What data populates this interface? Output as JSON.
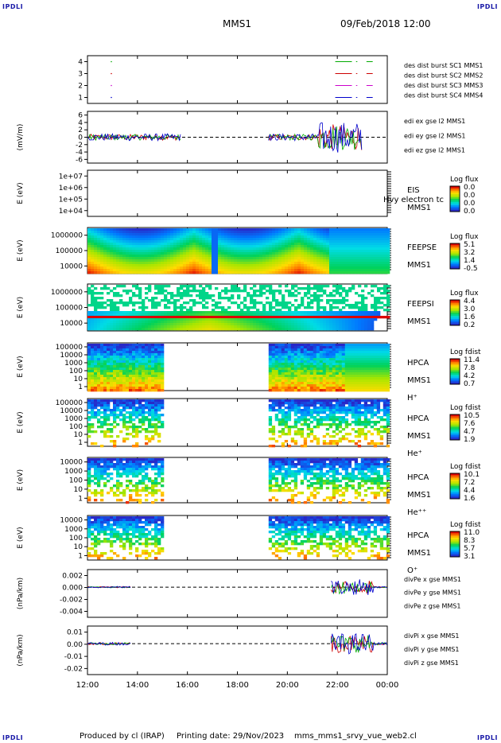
{
  "header": {
    "corner_label": "IPDLI",
    "spacecraft": "MMS1",
    "datetime": "09/Feb/2018 12:00"
  },
  "footer": {
    "produced": "Produced by cl (IRAP)",
    "printing": "Printing date: 29/Nov/2023",
    "file": "mms_mms1_srvy_vue_web2.cl"
  },
  "time_axis": {
    "start": "12:00",
    "end": "00:00",
    "ticks": [
      "12:00",
      "14:00",
      "16:00",
      "18:00",
      "20:00",
      "22:00",
      "00:00"
    ]
  },
  "chart_data": [
    {
      "type": "scatter",
      "title": "",
      "ylabel": "",
      "yticks": [
        "1",
        "2",
        "3",
        "4"
      ],
      "ylim": [
        0.5,
        4.5
      ],
      "legend": [
        "des dist burst SC1 MMS1",
        "des dist burst SC2 MMS2",
        "des dist burst SC3 MMS3",
        "des dist burst SC4 MMS4"
      ],
      "colors": [
        "#0000cc",
        "#cc00cc",
        "#cc0000",
        "#00aa00"
      ],
      "series": [
        {
          "name": "des dist burst SC1 MMS1",
          "level": 1,
          "intervals": [
            [
              "21:55",
              "22:35"
            ],
            [
              "22:45",
              "22:48"
            ],
            [
              "23:10",
              "23:25"
            ]
          ]
        },
        {
          "name": "des dist burst SC2 MMS2",
          "level": 2,
          "intervals": [
            [
              "21:55",
              "22:35"
            ],
            [
              "22:45",
              "22:48"
            ],
            [
              "23:10",
              "23:25"
            ]
          ]
        },
        {
          "name": "des dist burst SC3 MMS3",
          "level": 3,
          "intervals": [
            [
              "21:55",
              "22:35"
            ],
            [
              "22:45",
              "22:48"
            ],
            [
              "23:10",
              "23:25"
            ]
          ]
        },
        {
          "name": "des dist burst SC4 MMS4",
          "level": 4,
          "intervals": [
            [
              "21:55",
              "22:35"
            ],
            [
              "22:45",
              "22:48"
            ],
            [
              "23:10",
              "23:25"
            ]
          ]
        }
      ]
    },
    {
      "type": "line",
      "title": "",
      "ylabel": "(mV/m)",
      "yticks": [
        "-6",
        "-4",
        "-2",
        "0",
        "2",
        "4",
        "6"
      ],
      "ylim": [
        -7,
        7
      ],
      "legend": [
        "edi ex gse l2 MMS1",
        "edi ey gse l2 MMS1",
        "edi ez gse l2 MMS1"
      ],
      "colors": [
        "#cc0000",
        "#00aa00",
        "#0000cc"
      ],
      "segments": [
        [
          "12:00",
          "15:45"
        ],
        [
          "19:15",
          "23:00"
        ]
      ]
    },
    {
      "type": "heatmap",
      "title": "",
      "ylabel": "E (eV)",
      "yticks": [
        "1e+04",
        "1e+05",
        "1e+06",
        "1e+07"
      ],
      "side_labels": [
        "EIS",
        "MMS1"
      ],
      "overlay_label": "Hvy electron tc",
      "colorbar_label": "Log flux",
      "colorbar_ticks": [
        "0.0",
        "0.0",
        "0.0",
        "0.0"
      ],
      "coverage": []
    },
    {
      "type": "heatmap",
      "title": "",
      "ylabel": "E (eV)",
      "yticks": [
        "10000",
        "100000",
        "1000000"
      ],
      "side_labels": [
        "FEEPSE",
        "MMS1"
      ],
      "colorbar_label": "Log flux",
      "colorbar_ticks": [
        "5.1",
        "3.2",
        "1.4",
        "-0.5"
      ],
      "coverage": [
        [
          "12:00",
          "00:00"
        ]
      ]
    },
    {
      "type": "heatmap",
      "title": "",
      "ylabel": "E (eV)",
      "yticks": [
        "10000",
        "100000",
        "1000000"
      ],
      "side_labels": [
        "FEEPSI",
        "MMS1"
      ],
      "colorbar_label": "Log flux",
      "colorbar_ticks": [
        "4.4",
        "3.0",
        "1.6",
        "0.2"
      ],
      "coverage": [
        [
          "12:00",
          "00:00"
        ]
      ]
    },
    {
      "type": "heatmap",
      "title": "",
      "ylabel": "E (eV)",
      "yticks": [
        "1",
        "10",
        "100",
        "1000",
        "10000",
        "100000"
      ],
      "side_labels": [
        "HPCA",
        "MMS1",
        "H⁺"
      ],
      "colorbar_label": "Log fdist",
      "colorbar_ticks": [
        "11.4",
        "7.8",
        "4.2",
        "0.7"
      ],
      "coverage": [
        [
          "12:00",
          "15:00"
        ],
        [
          "19:15",
          "00:00"
        ]
      ]
    },
    {
      "type": "heatmap",
      "title": "",
      "ylabel": "E (eV)",
      "yticks": [
        "1",
        "10",
        "100",
        "1000",
        "10000",
        "100000"
      ],
      "side_labels": [
        "HPCA",
        "MMS1",
        "He⁺"
      ],
      "colorbar_label": "Log fdist",
      "colorbar_ticks": [
        "10.5",
        "7.6",
        "4.7",
        "1.9"
      ],
      "coverage": [
        [
          "12:00",
          "15:00"
        ],
        [
          "19:15",
          "00:00"
        ]
      ]
    },
    {
      "type": "heatmap",
      "title": "",
      "ylabel": "E (eV)",
      "yticks": [
        "1",
        "10",
        "100",
        "1000",
        "10000"
      ],
      "side_labels": [
        "HPCA",
        "MMS1",
        "He⁺⁺"
      ],
      "colorbar_label": "Log fdist",
      "colorbar_ticks": [
        "10.1",
        "7.2",
        "4.4",
        "1.6"
      ],
      "coverage": [
        [
          "12:00",
          "15:00"
        ],
        [
          "19:15",
          "00:00"
        ]
      ]
    },
    {
      "type": "heatmap",
      "title": "",
      "ylabel": "E (eV)",
      "yticks": [
        "1",
        "10",
        "100",
        "1000",
        "10000"
      ],
      "side_labels": [
        "HPCA",
        "MMS1",
        "O⁺"
      ],
      "colorbar_label": "Log fdist",
      "colorbar_ticks": [
        "11.0",
        "8.3",
        "5.7",
        "3.1"
      ],
      "coverage": [
        [
          "12:00",
          "15:00"
        ],
        [
          "19:15",
          "00:00"
        ]
      ]
    },
    {
      "type": "line",
      "title": "",
      "ylabel": "(nPa/km)",
      "yticks": [
        "-0.004",
        "-0.002",
        "0.000",
        "0.002"
      ],
      "ylim": [
        -0.0055,
        0.0032
      ],
      "legend": [
        "divPe x gse MMS1",
        "divPe y gse MMS1",
        "divPe z gse MMS1"
      ],
      "colors": [
        "#cc0000",
        "#00aa00",
        "#0000cc"
      ],
      "segments": [
        [
          "12:00",
          "13:45"
        ],
        [
          "21:45",
          "00:00"
        ]
      ]
    },
    {
      "type": "line",
      "title": "",
      "ylabel": "(nPa/km)",
      "yticks": [
        "-0.02",
        "-0.01",
        "0.00",
        "0.01"
      ],
      "ylim": [
        -0.021,
        0.012
      ],
      "legend": [
        "divPi x gse MMS1",
        "divPi y gse MMS1",
        "divPi z gse MMS1"
      ],
      "colors": [
        "#cc0000",
        "#00aa00",
        "#0000cc"
      ],
      "segments": [
        [
          "12:00",
          "13:45"
        ],
        [
          "21:45",
          "00:00"
        ]
      ]
    }
  ]
}
